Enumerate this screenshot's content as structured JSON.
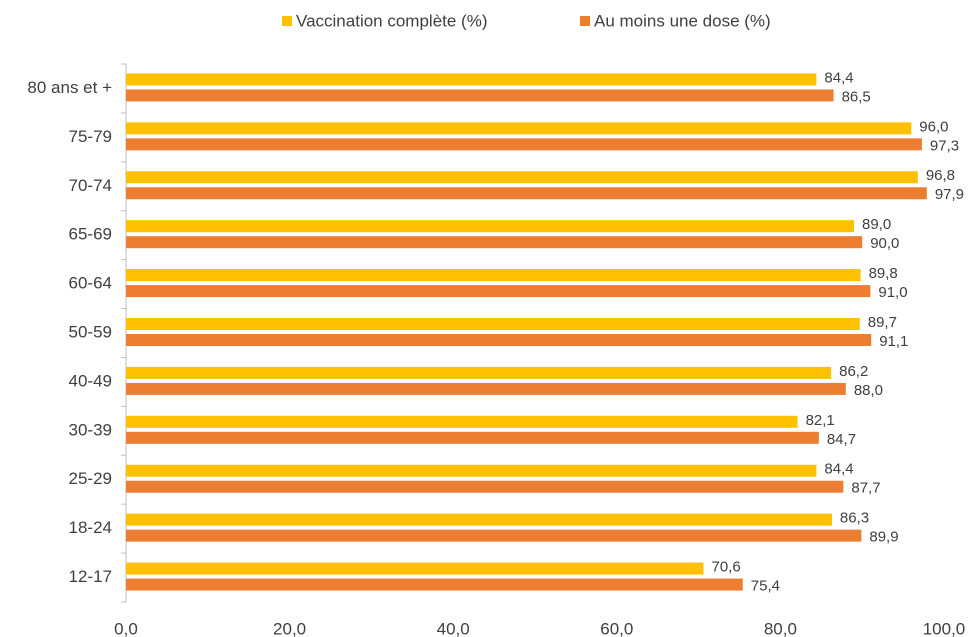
{
  "chart_data": {
    "type": "hbar",
    "categories": [
      "80 ans et +",
      "75-79",
      "70-74",
      "65-69",
      "60-64",
      "50-59",
      "40-49",
      "30-39",
      "25-29",
      "18-24",
      "12-17"
    ],
    "series": [
      {
        "name": "Vaccination complète (%)",
        "color": "#FFC000",
        "values": [
          84.4,
          96.0,
          96.8,
          89.0,
          89.8,
          89.7,
          86.2,
          82.1,
          84.4,
          86.3,
          70.6
        ],
        "value_labels": [
          "84,4",
          "96,0",
          "96,8",
          "89,0",
          "89,8",
          "89,7",
          "86,2",
          "82,1",
          "84,4",
          "86,3",
          "70,6"
        ]
      },
      {
        "name": "Au moins une dose (%)",
        "color": "#ED7D31",
        "values": [
          86.5,
          97.3,
          97.9,
          90.0,
          91.0,
          91.1,
          88.0,
          84.7,
          87.7,
          89.9,
          75.4
        ],
        "value_labels": [
          "86,5",
          "97,3",
          "97,9",
          "90,0",
          "91,0",
          "91,1",
          "88,0",
          "84,7",
          "87,7",
          "89,9",
          "75,4"
        ]
      }
    ],
    "xlim": [
      0,
      100
    ],
    "xticks": [
      {
        "value": 0,
        "label": "0,0"
      },
      {
        "value": 20,
        "label": "20,0"
      },
      {
        "value": 40,
        "label": "40,0"
      },
      {
        "value": 60,
        "label": "60,0"
      },
      {
        "value": 80,
        "label": "80,0"
      },
      {
        "value": 100,
        "label": "100,0"
      }
    ],
    "legend": "top",
    "grid": false
  }
}
